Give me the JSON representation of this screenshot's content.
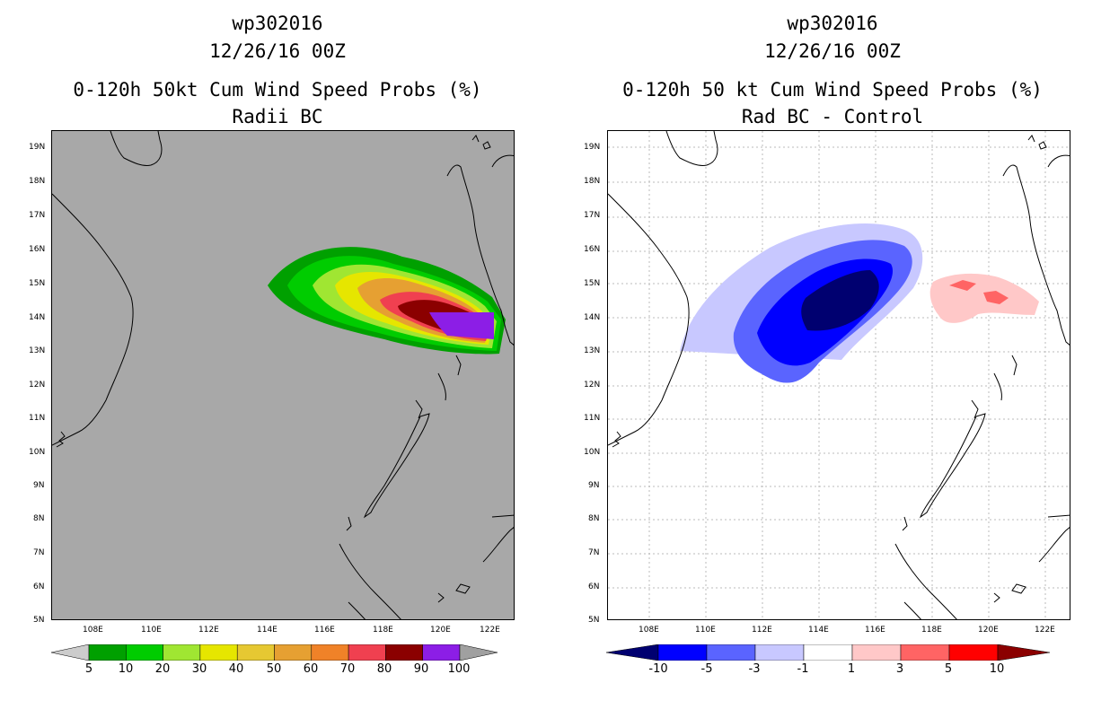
{
  "left": {
    "storm_id": "wp302016",
    "datetime": "12/26/16 00Z",
    "product": "0-120h 50kt Cum Wind Speed Probs (%)",
    "subtitle": "Radii BC",
    "colorbar": {
      "labels": [
        "5",
        "10",
        "20",
        "30",
        "40",
        "50",
        "60",
        "70",
        "80",
        "90",
        "100"
      ],
      "colors": [
        "#cccccc",
        "#00a000",
        "#00cc00",
        "#a0e632",
        "#e6e600",
        "#e6c832",
        "#e6a032",
        "#f08228",
        "#f04050",
        "#8b0000",
        "#8c1ee6",
        "#a0a0a0"
      ]
    }
  },
  "right": {
    "storm_id": "wp302016",
    "datetime": "12/26/16 00Z",
    "product": "0-120h 50 kt Cum Wind Speed Probs (%)",
    "subtitle": "Rad BC - Control",
    "colorbar": {
      "labels": [
        "-10",
        "-5",
        "-3",
        "-1",
        "1",
        "3",
        "5",
        "10"
      ],
      "colors": [
        "#000070",
        "#0000ff",
        "#5a64ff",
        "#c8c8ff",
        "#ffffff",
        "#ffc8c8",
        "#ff6464",
        "#ff0000",
        "#8b0000"
      ]
    }
  },
  "axes": {
    "lat_labels": [
      "19N",
      "18N",
      "17N",
      "16N",
      "15N",
      "14N",
      "13N",
      "12N",
      "11N",
      "10N",
      "9N",
      "8N",
      "7N",
      "6N",
      "5N"
    ],
    "lon_labels": [
      "108E",
      "110E",
      "112E",
      "114E",
      "116E",
      "118E",
      "120E",
      "122E"
    ]
  }
}
